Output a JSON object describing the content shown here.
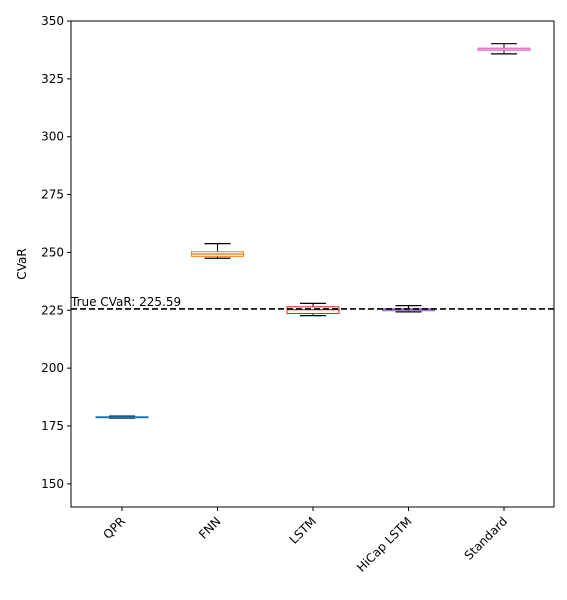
{
  "chart_data": {
    "type": "box",
    "title": "",
    "xlabel": "",
    "ylabel": "CVaR",
    "ylim": [
      140,
      350
    ],
    "yticks": [
      150,
      175,
      200,
      225,
      250,
      275,
      300,
      325,
      350
    ],
    "categories": [
      "QPR",
      "FNN",
      "LSTM",
      "HiCap LSTM",
      "Standard"
    ],
    "boxes": [
      {
        "category": "QPR",
        "whisker_low": 178.4,
        "q1": 178.6,
        "median": 178.8,
        "q3": 179.0,
        "whisker_high": 179.3,
        "color": "#1f77b4"
      },
      {
        "category": "FNN",
        "whisker_low": 247.5,
        "q1": 248.3,
        "median": 249.3,
        "q3": 250.3,
        "whisker_high": 253.8,
        "color": "#ff7f0e"
      },
      {
        "category": "LSTM",
        "whisker_low": 222.7,
        "q1": 223.6,
        "median": 225.3,
        "q3": 226.5,
        "whisker_high": 228.0,
        "color": "#d62728"
      },
      {
        "category": "HiCap LSTM",
        "whisker_low": 224.3,
        "q1": 224.8,
        "median": 225.3,
        "q3": 225.7,
        "whisker_high": 227.0,
        "color": "#9467bd"
      },
      {
        "category": "Standard",
        "whisker_low": 335.8,
        "q1": 337.3,
        "median": 337.9,
        "q3": 338.3,
        "whisker_high": 340.2,
        "color": "#e377c2"
      }
    ],
    "reference_line": {
      "value": 225.59,
      "label": "True CVaR: 225.59",
      "style": "dashed",
      "color": "#000000"
    },
    "grid": false,
    "legend": "none",
    "xtick_rotation": 45
  }
}
